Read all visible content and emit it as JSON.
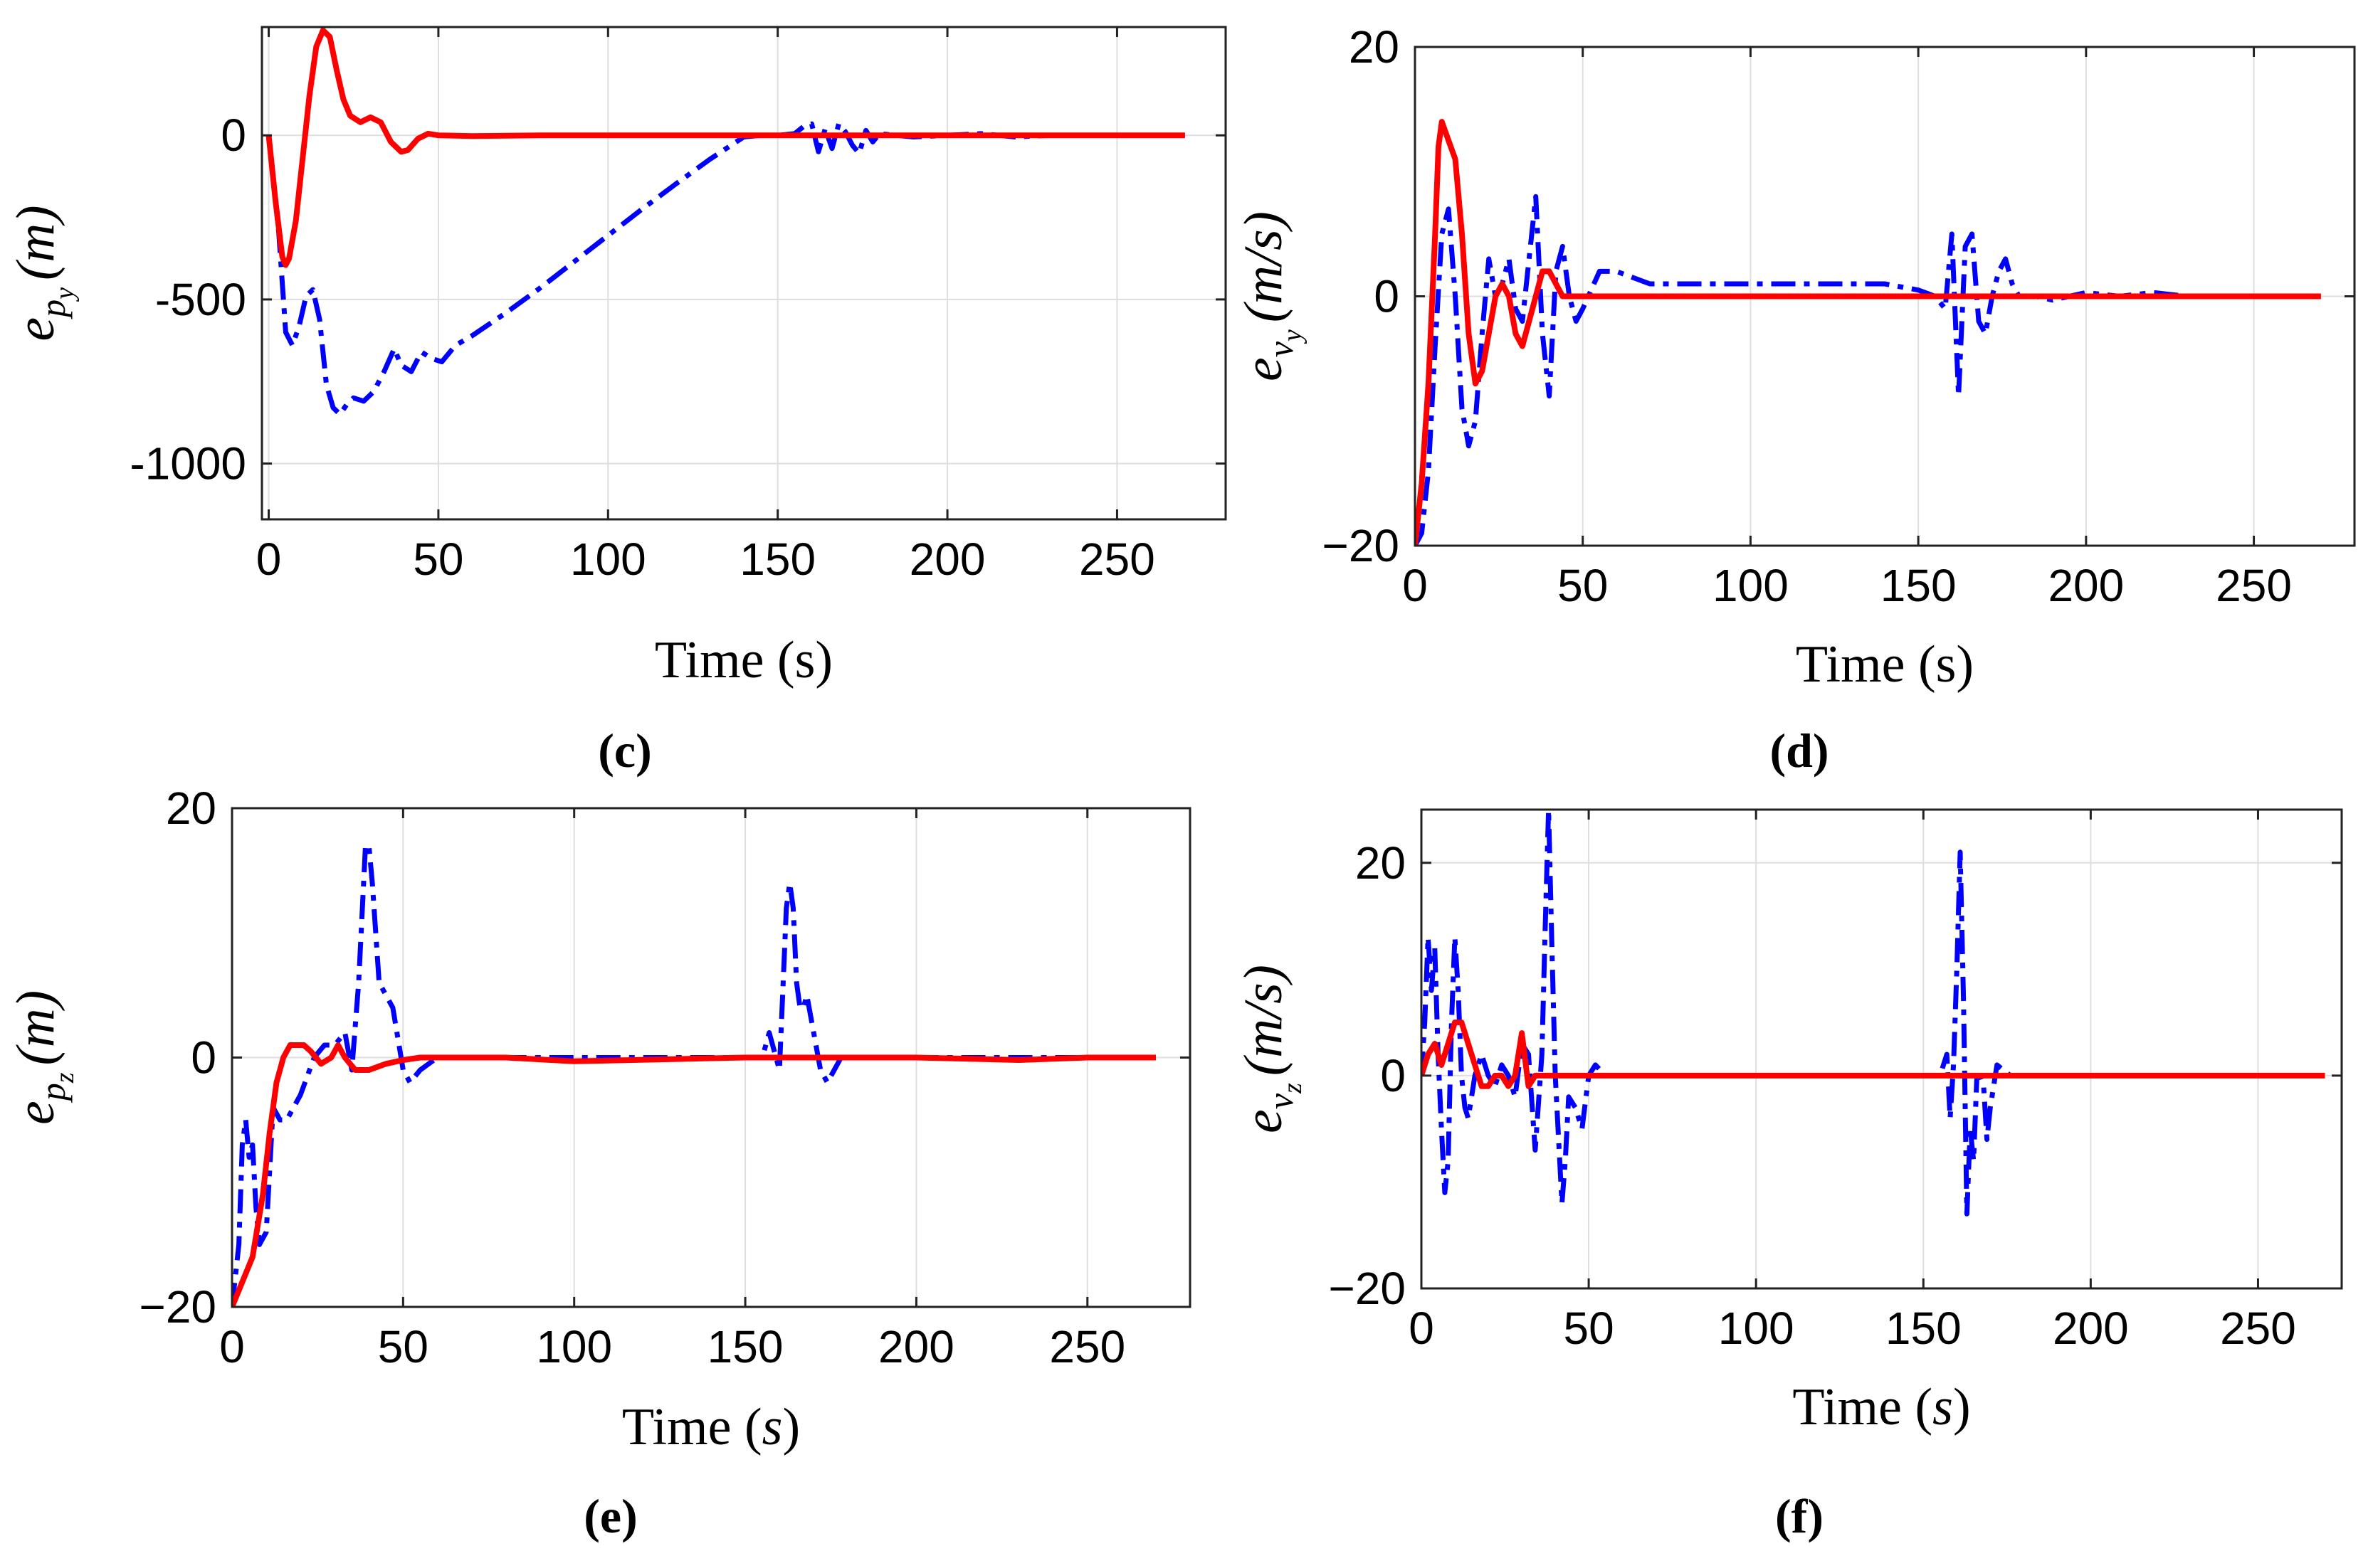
{
  "chart_data": [
    {
      "type": "line",
      "panel": "c",
      "caption": "(c)",
      "xlabel": "Time (s)",
      "ylabel": "e_{p_y} (m)",
      "ylabel_main": "e",
      "ylabel_sub": "p",
      "ylabel_subsub": "y",
      "ylabel_unit": "(m)",
      "xlim": [
        -2,
        282
      ],
      "ylim": [
        -1170,
        330
      ],
      "xticks": [
        0,
        50,
        100,
        150,
        200,
        250
      ],
      "xticklabels": [
        "0",
        "50",
        "100",
        "150",
        "200",
        "250"
      ],
      "yticks": [
        0,
        -500,
        -1000
      ],
      "yticklabels": [
        "0",
        "-500",
        "-1000"
      ],
      "grid": true,
      "series": [
        {
          "name": "dash-dot",
          "color": "#0000ff",
          "style": "dashdot",
          "x": [
            0,
            3,
            5,
            7,
            9,
            11,
            13,
            15,
            17,
            19,
            21,
            23,
            25,
            28,
            31,
            34,
            37,
            39,
            42,
            45,
            48,
            51,
            55,
            60,
            70,
            80,
            90,
            100,
            110,
            120,
            130,
            140,
            145,
            150,
            155,
            158,
            160,
            162,
            164,
            166,
            168,
            170,
            172,
            174,
            176,
            178,
            180,
            185,
            190,
            200,
            210,
            220,
            230,
            240,
            250,
            260,
            270
          ],
          "y": [
            0,
            -300,
            -600,
            -640,
            -580,
            -490,
            -470,
            -560,
            -760,
            -830,
            -850,
            -820,
            -800,
            -810,
            -780,
            -720,
            -650,
            -700,
            -720,
            -660,
            -680,
            -690,
            -640,
            -610,
            -540,
            -465,
            -385,
            -305,
            -225,
            -148,
            -73,
            -5,
            0,
            0,
            5,
            30,
            35,
            -50,
            20,
            -40,
            35,
            10,
            -30,
            -55,
            15,
            -20,
            5,
            0,
            -5,
            0,
            5,
            -5,
            0,
            0,
            0,
            0,
            0
          ]
        },
        {
          "name": "solid",
          "color": "#ff0000",
          "style": "solid",
          "x": [
            0,
            2,
            4,
            5,
            6,
            8,
            10,
            12,
            14,
            16,
            18,
            20,
            22,
            24,
            27,
            30,
            33,
            36,
            39,
            41,
            44,
            47,
            50,
            60,
            80,
            100,
            150,
            200,
            250,
            270
          ],
          "y": [
            0,
            -200,
            -370,
            -395,
            -375,
            -260,
            -70,
            120,
            270,
            320,
            300,
            200,
            110,
            60,
            40,
            55,
            40,
            -20,
            -50,
            -45,
            -10,
            5,
            0,
            -2,
            0,
            0,
            0,
            0,
            0,
            0
          ]
        }
      ]
    },
    {
      "type": "line",
      "panel": "d",
      "caption": "(d)",
      "xlabel": "Time (s)",
      "ylabel": "e_{v_y} (m/s)",
      "ylabel_main": "e",
      "ylabel_sub": "v",
      "ylabel_subsub": "y",
      "ylabel_unit": "(m/s)",
      "xlim": [
        0,
        280
      ],
      "ylim": [
        -20,
        20
      ],
      "xticks": [
        0,
        50,
        100,
        150,
        200,
        250
      ],
      "xticklabels": [
        "0",
        "50",
        "100",
        "150",
        "200",
        "250"
      ],
      "yticks": [
        20,
        0,
        -20
      ],
      "yticklabels": [
        "20",
        "0",
        "−20"
      ],
      "grid": true,
      "series": [
        {
          "name": "dash-dot",
          "color": "#0000ff",
          "style": "dashdot",
          "x": [
            0,
            2,
            4,
            6,
            8,
            10,
            12,
            14,
            16,
            18,
            20,
            22,
            24,
            26,
            28,
            30,
            32,
            34,
            36,
            38,
            40,
            42,
            44,
            46,
            48,
            50,
            55,
            60,
            70,
            80,
            90,
            100,
            120,
            140,
            150,
            155,
            158,
            160,
            162,
            164,
            166,
            168,
            170,
            172,
            174,
            176,
            178,
            180,
            185,
            190,
            200,
            210,
            220,
            230,
            240,
            250,
            260,
            270
          ],
          "y": [
            -20,
            -19,
            -14,
            -4,
            5,
            7,
            0,
            -9,
            -12,
            -10,
            -3,
            3,
            0,
            1,
            3,
            -1,
            -2,
            3,
            8,
            -3,
            -8,
            2,
            4,
            0,
            -2,
            -1,
            2,
            2,
            1,
            1,
            1,
            1,
            1,
            1,
            0.5,
            0,
            -1,
            5,
            -8,
            4,
            5,
            -2,
            -3,
            0,
            2,
            3,
            1,
            0,
            0,
            -0.3,
            0.3,
            0,
            0.3,
            0,
            0,
            0,
            0,
            0
          ]
        },
        {
          "name": "solid",
          "color": "#ff0000",
          "style": "solid",
          "x": [
            0,
            2,
            4,
            6,
            7,
            8,
            10,
            12,
            14,
            16,
            18,
            20,
            22,
            24,
            26,
            28,
            30,
            32,
            34,
            36,
            38,
            40,
            42,
            44,
            46,
            48,
            50,
            55,
            60,
            80,
            100,
            150,
            200,
            250,
            270
          ],
          "y": [
            -20,
            -15,
            -7,
            5,
            12,
            14,
            12.5,
            11,
            5,
            -3,
            -7,
            -6,
            -3,
            0,
            1,
            0,
            -3,
            -4,
            -2,
            0,
            2,
            2,
            1,
            0,
            0,
            0,
            0,
            0,
            0,
            0,
            0,
            0,
            0,
            0,
            0
          ]
        }
      ]
    },
    {
      "type": "line",
      "panel": "e",
      "caption": "(e)",
      "xlabel": "Time (s)",
      "xlabel_main": "Time",
      "xlabel_var": "s",
      "ylabel": "e_{p_z} (m)",
      "ylabel_main": "e",
      "ylabel_sub": "p",
      "ylabel_subsub": "z",
      "ylabel_unit": "(m)",
      "xlim": [
        0,
        280
      ],
      "ylim": [
        -20,
        20
      ],
      "xticks": [
        0,
        50,
        100,
        150,
        200,
        250
      ],
      "xticklabels": [
        "0",
        "50",
        "100",
        "150",
        "200",
        "250"
      ],
      "yticks": [
        20,
        0,
        -20
      ],
      "yticklabels": [
        "20",
        "0",
        "−20"
      ],
      "grid": true,
      "series": [
        {
          "name": "dash-dot",
          "color": "#0000ff",
          "style": "dashdot",
          "x": [
            0,
            2,
            3,
            4,
            5,
            6,
            7,
            8,
            10,
            12,
            14,
            16,
            20,
            24,
            27,
            30,
            33,
            35,
            37,
            39,
            40,
            41,
            42,
            43,
            45,
            47,
            50,
            52,
            55,
            60,
            70,
            100,
            150,
            155,
            157,
            159,
            160,
            162,
            163,
            164,
            165,
            166,
            167,
            168,
            170,
            172,
            174,
            176,
            178,
            180,
            185,
            190,
            200,
            250,
            270
          ],
          "y": [
            -20,
            -15,
            -7,
            -5,
            -8,
            -7,
            -12,
            -15,
            -14,
            -4,
            -5,
            -5,
            -3,
            0,
            1,
            1,
            2,
            -1,
            6,
            17,
            17,
            14,
            10,
            6,
            5,
            4,
            -1,
            -2,
            -1,
            0,
            0,
            0,
            0,
            0,
            2,
            0,
            -1,
            12,
            14,
            12,
            6,
            4,
            4,
            5,
            2,
            -1,
            -2,
            -1,
            0,
            0,
            0,
            0,
            0,
            0,
            0
          ]
        },
        {
          "name": "solid",
          "color": "#ff0000",
          "style": "solid",
          "x": [
            0,
            3,
            6,
            9,
            11,
            13,
            15,
            17,
            19,
            21,
            23,
            26,
            29,
            31,
            33,
            36,
            40,
            45,
            50,
            55,
            60,
            80,
            100,
            150,
            200,
            230,
            250,
            270
          ],
          "y": [
            -20,
            -18,
            -16,
            -11,
            -6,
            -2,
            0,
            1,
            1,
            1,
            0.5,
            -0.5,
            0,
            1,
            0,
            -1,
            -1,
            -0.5,
            -0.2,
            0,
            0,
            0,
            -0.3,
            0,
            0,
            -0.2,
            0,
            0
          ]
        }
      ]
    },
    {
      "type": "line",
      "panel": "f",
      "caption": "(f)",
      "xlabel": "Time (s)",
      "xlabel_main": "Time",
      "xlabel_var": "s",
      "ylabel": "e_{v_z} (m/s)",
      "ylabel_main": "e",
      "ylabel_sub": "v",
      "ylabel_subsub": "z",
      "ylabel_unit": "(m/s)",
      "xlim": [
        0,
        275
      ],
      "ylim": [
        -20,
        25
      ],
      "xticks": [
        0,
        50,
        100,
        150,
        200,
        250
      ],
      "xticklabels": [
        "0",
        "50",
        "100",
        "150",
        "200",
        "250"
      ],
      "yticks": [
        20,
        0,
        -20
      ],
      "yticklabels": [
        "20",
        "0",
        "−20"
      ],
      "grid": true,
      "series": [
        {
          "name": "dash-dot",
          "color": "#0000ff",
          "style": "dashdot",
          "x": [
            0,
            1,
            2,
            3,
            4,
            5,
            6,
            7,
            8,
            9,
            10,
            11,
            12,
            13,
            14,
            15,
            16,
            17,
            18,
            20,
            22,
            24,
            26,
            28,
            30,
            32,
            34,
            36,
            37,
            38,
            39,
            40,
            41,
            42,
            43,
            44,
            46,
            48,
            50,
            52,
            55,
            60,
            80,
            100,
            150,
            155,
            157,
            158,
            159,
            160,
            161,
            162,
            163,
            164,
            165,
            166,
            167,
            168,
            169,
            170,
            172,
            174,
            176,
            178,
            180,
            185,
            190,
            200,
            250,
            270
          ],
          "y": [
            0,
            5,
            13,
            8,
            12,
            2,
            -5,
            -11,
            -8,
            5,
            13,
            8,
            0,
            -3,
            -4,
            -2,
            0,
            1,
            2,
            0,
            -1,
            1,
            0,
            -2,
            3,
            2,
            -7,
            2,
            14,
            25,
            12,
            0,
            -6,
            -12,
            -8,
            -2,
            -3,
            -5,
            0,
            1,
            0,
            0,
            0,
            0,
            0,
            0,
            2,
            -4,
            1,
            10,
            21,
            7,
            -13,
            -5,
            -8,
            0,
            0,
            -1,
            -6,
            -3,
            1,
            0.5,
            0,
            0,
            0,
            0,
            0,
            0,
            0,
            0
          ]
        },
        {
          "name": "solid",
          "color": "#ff0000",
          "style": "solid",
          "x": [
            0,
            2,
            4,
            6,
            8,
            10,
            12,
            14,
            16,
            18,
            20,
            22,
            24,
            26,
            28,
            30,
            32,
            34,
            36,
            38,
            40,
            45,
            50,
            60,
            100,
            150,
            200,
            250,
            270
          ],
          "y": [
            0,
            2,
            3,
            1,
            3,
            5,
            5,
            3,
            1,
            -1,
            -1,
            0,
            0,
            -1,
            0,
            4,
            -1,
            0,
            0,
            0,
            0,
            0,
            0,
            0,
            0,
            0,
            0,
            0,
            0
          ]
        }
      ]
    }
  ]
}
